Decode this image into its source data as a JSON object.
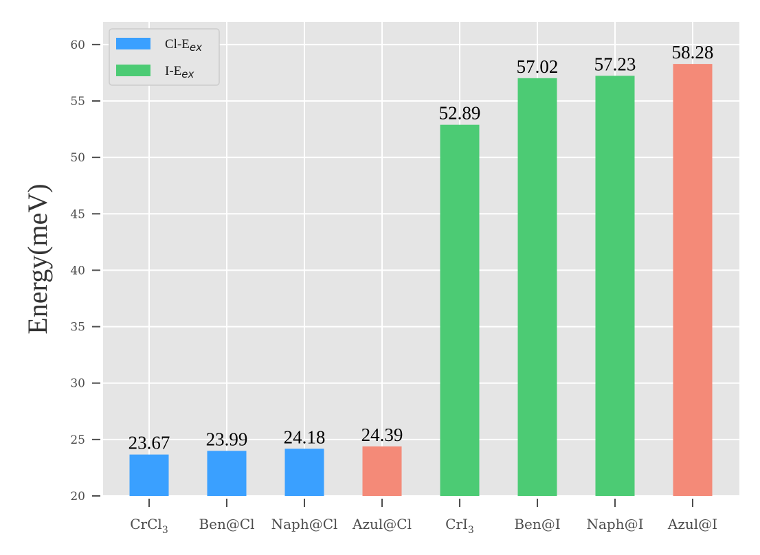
{
  "chart_data": {
    "type": "bar",
    "title": "",
    "xlabel": "",
    "ylabel": "Energy(meV)",
    "ylim": [
      20,
      62
    ],
    "yticks": [
      20,
      25,
      30,
      35,
      40,
      45,
      50,
      55,
      60
    ],
    "grid": true,
    "legend_position": "top-left",
    "categories": [
      {
        "base": "CrCl",
        "sub": "3"
      },
      {
        "base": "Ben@Cl",
        "sub": ""
      },
      {
        "base": "Naph@Cl",
        "sub": ""
      },
      {
        "base": "Azul@Cl",
        "sub": ""
      },
      {
        "base": "CrI",
        "sub": "3"
      },
      {
        "base": "Ben@I",
        "sub": ""
      },
      {
        "base": "Naph@I",
        "sub": ""
      },
      {
        "base": "Azul@I",
        "sub": ""
      }
    ],
    "values": [
      23.67,
      23.99,
      24.18,
      24.39,
      52.89,
      57.02,
      57.23,
      58.28
    ],
    "value_labels": [
      "23.67",
      "23.99",
      "24.18",
      "24.39",
      "52.89",
      "57.02",
      "57.23",
      "58.28"
    ],
    "bar_colors": [
      "#3aa0ff",
      "#3aa0ff",
      "#3aa0ff",
      "#f48a78",
      "#4ccb74",
      "#4ccb74",
      "#4ccb74",
      "#f48a78"
    ],
    "legend": [
      {
        "label": "Cl-E",
        "sub": "ex",
        "color": "#3aa0ff"
      },
      {
        "label": "I-E",
        "sub": "ex",
        "color": "#4ccb74"
      }
    ],
    "plot_background": "#e5e5e5",
    "grid_color": "#ffffff"
  }
}
